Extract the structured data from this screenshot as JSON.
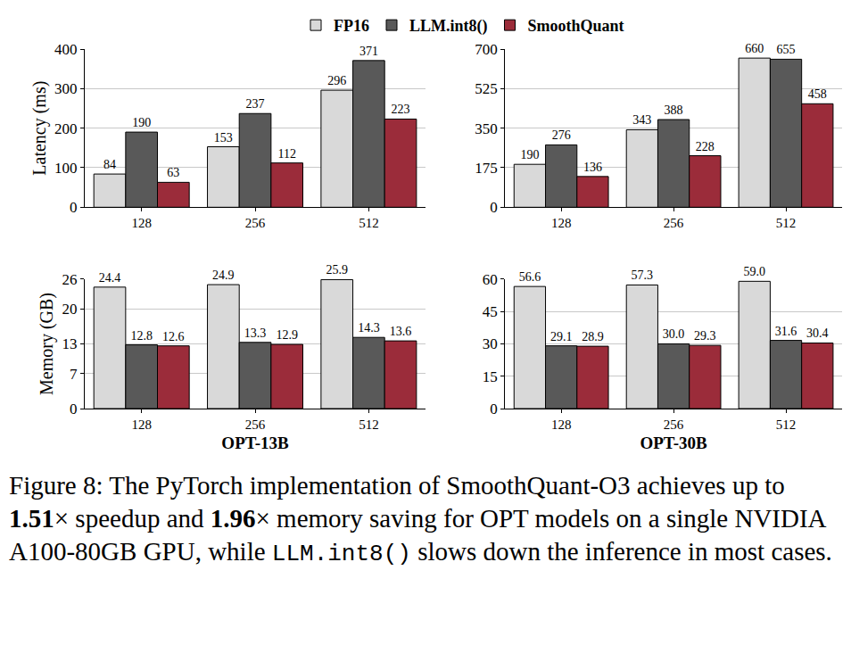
{
  "chart_data": [
    {
      "type": "bar",
      "y_label": "Latency (ms)",
      "categories": [
        "128",
        "256",
        "512"
      ],
      "series": [
        {
          "name": "FP16",
          "color": "#d9d9d9",
          "values": [
            84,
            153,
            296
          ]
        },
        {
          "name": "LLM.int8()",
          "color": "#595959",
          "values": [
            190,
            237,
            371
          ]
        },
        {
          "name": "SmoothQuant",
          "color": "#9b2c3a",
          "values": [
            63,
            112,
            223
          ]
        }
      ],
      "ylim": [
        0,
        400
      ],
      "yticks": [
        0,
        100,
        200,
        300,
        400
      ],
      "grid": true,
      "data_labels": true,
      "legend": "top"
    },
    {
      "type": "bar",
      "categories": [
        "128",
        "256",
        "512"
      ],
      "series": [
        {
          "name": "FP16",
          "color": "#d9d9d9",
          "values": [
            190,
            343,
            660
          ]
        },
        {
          "name": "LLM.int8()",
          "color": "#595959",
          "values": [
            276,
            388,
            655
          ]
        },
        {
          "name": "SmoothQuant",
          "color": "#9b2c3a",
          "values": [
            136,
            228,
            458
          ]
        }
      ],
      "ylim": [
        0,
        700
      ],
      "yticks": [
        0,
        175,
        350,
        525,
        700
      ],
      "grid": true,
      "data_labels": true
    },
    {
      "type": "bar",
      "y_label": "Memory (GB)",
      "x_label": "OPT-13B",
      "categories": [
        "128",
        "256",
        "512"
      ],
      "series": [
        {
          "name": "FP16",
          "color": "#d9d9d9",
          "values": [
            24.4,
            24.9,
            25.9
          ]
        },
        {
          "name": "LLM.int8()",
          "color": "#595959",
          "values": [
            12.8,
            13.3,
            14.3
          ]
        },
        {
          "name": "SmoothQuant",
          "color": "#9b2c3a",
          "values": [
            12.6,
            12.9,
            13.6
          ]
        }
      ],
      "ylim": [
        0,
        26
      ],
      "yticks": [
        0,
        7,
        13,
        20,
        26
      ],
      "grid": true,
      "data_labels": true
    },
    {
      "type": "bar",
      "x_label": "OPT-30B",
      "categories": [
        "128",
        "256",
        "512"
      ],
      "series": [
        {
          "name": "FP16",
          "color": "#d9d9d9",
          "values": [
            56.6,
            57.3,
            59.0
          ],
          "value_labels": [
            "56.6",
            "57.3",
            "59.0"
          ]
        },
        {
          "name": "LLM.int8()",
          "color": "#595959",
          "values": [
            29.1,
            30.0,
            31.6
          ],
          "value_labels": [
            "29.1",
            "30.0",
            "31.6"
          ]
        },
        {
          "name": "SmoothQuant",
          "color": "#9b2c3a",
          "values": [
            28.9,
            29.3,
            30.4
          ]
        }
      ],
      "ylim": [
        0,
        60
      ],
      "yticks": [
        0,
        15,
        30,
        45,
        60
      ],
      "grid": true,
      "data_labels": true
    }
  ],
  "caption": {
    "parts": [
      {
        "text": "Figure 8: The PyTorch implementation of SmoothQuant-O3 achieves up to "
      },
      {
        "text": "1.51",
        "style": "bold"
      },
      {
        "text": "× speedup and "
      },
      {
        "text": "1.96",
        "style": "bold"
      },
      {
        "text": "× memory saving for OPT models on a single NVIDIA A100-80GB GPU, while "
      },
      {
        "text": "LLM.int8()",
        "style": "mono"
      },
      {
        "text": " slows down the inference in most cases."
      }
    ]
  }
}
